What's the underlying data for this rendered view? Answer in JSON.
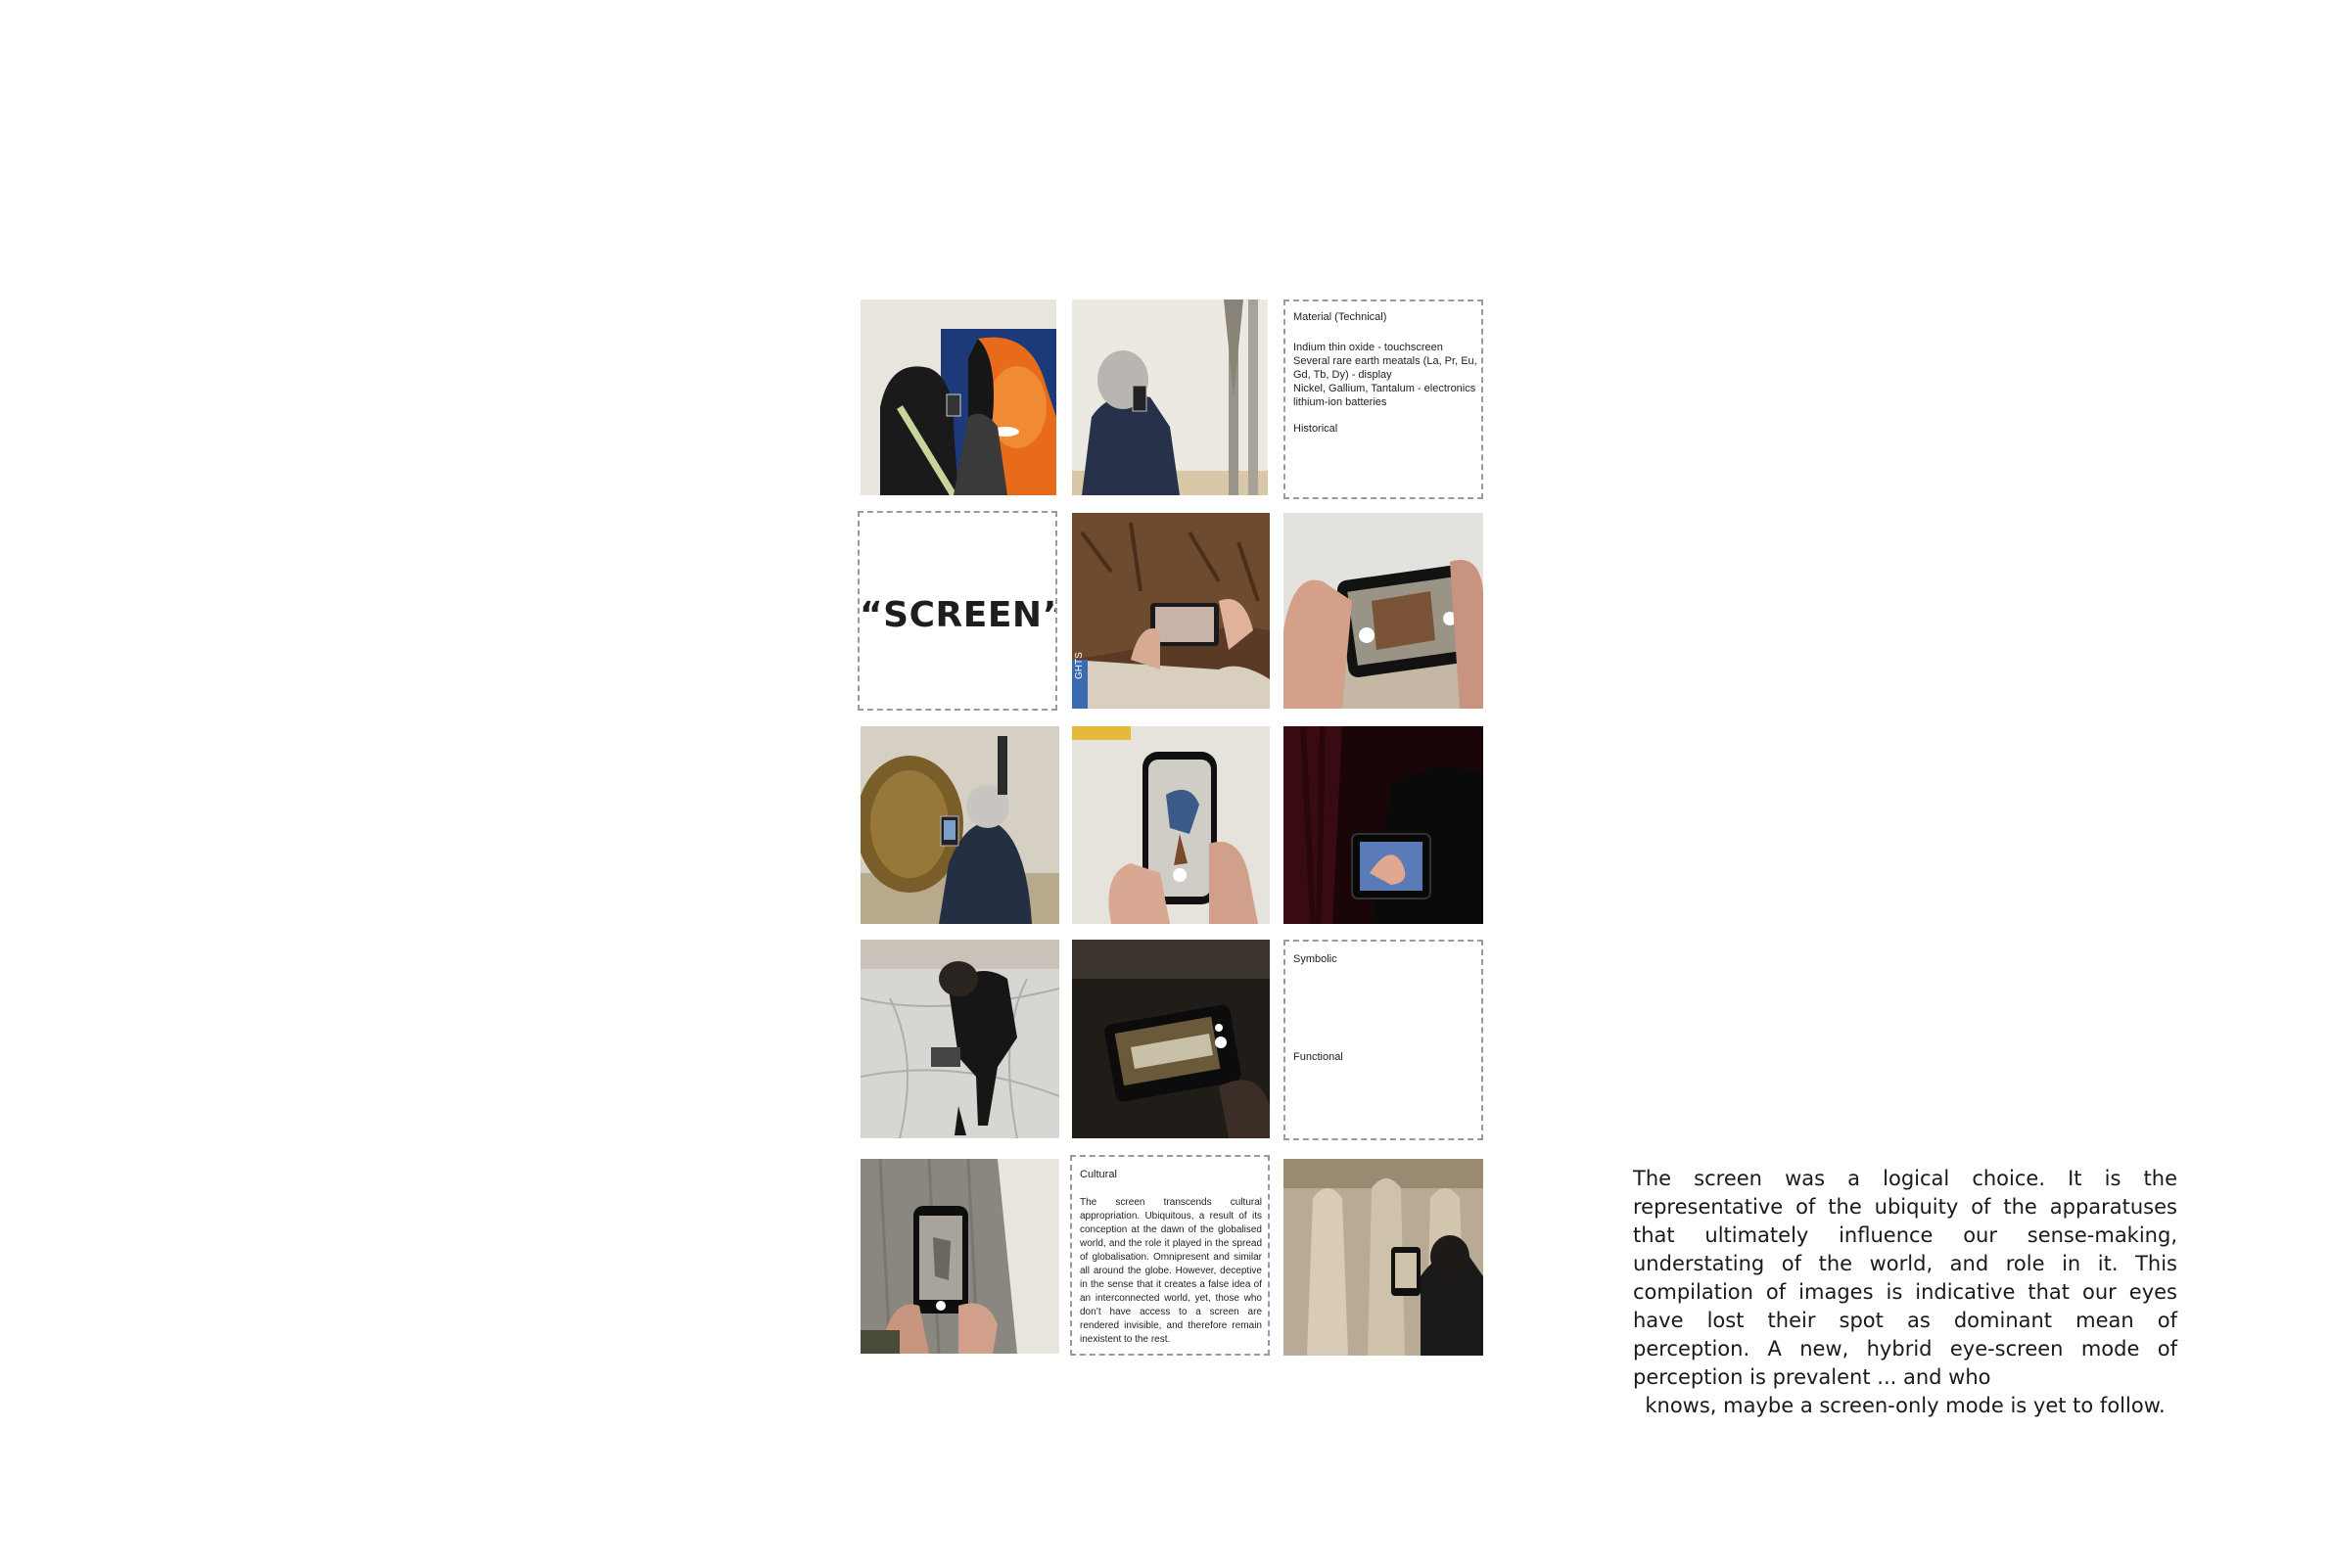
{
  "grid": {
    "material_box": {
      "heading": "Material (Technical)",
      "lines": [
        "Indium thin oxide - touchscreen",
        "Several rare earth meatals (La, Pr, Eu,",
        "Gd, Tb, Dy) - display",
        "Nickel, Gallium, Tantalum - electronics",
        "lithium-ion batteries"
      ],
      "historical_label": "Historical"
    },
    "title_box": {
      "title": "“SCREEN”"
    },
    "symbolic_box": {
      "symbolic_label": "Symbolic",
      "functional_label": "Functional"
    },
    "cultural_box": {
      "heading": "Cultural",
      "paragraph": "The screen transcends cultural appropriation. Ubiquitous, a result of its conception at the dawn of the globalised world, and the role it played in the spread of globalisation. Omnipresent and similar all around the globe. However, deceptive in the sense that it creates a false idea of an interconnected world, yet, those who don’t have access to a screen are rendered invisible, and therefore remain inexistent to the rest."
    },
    "photo_edge_text": "GHTS"
  },
  "side_text": {
    "paragraph": "The screen was a logical choice. It is the representative of the ubiquity of the apparatuses that ultimately influence our sense-making, understating of the world, and role in it. This compilation of images is indicative that our eyes have lost their spot as dominant mean of perception. A new, hybrid eye-screen mode of perception is prevalent ... and who",
    "last_line": "knows, maybe a screen-only mode is yet to follow."
  },
  "colors": {
    "dash_border": "#9a9a9a",
    "text": "#222222"
  }
}
